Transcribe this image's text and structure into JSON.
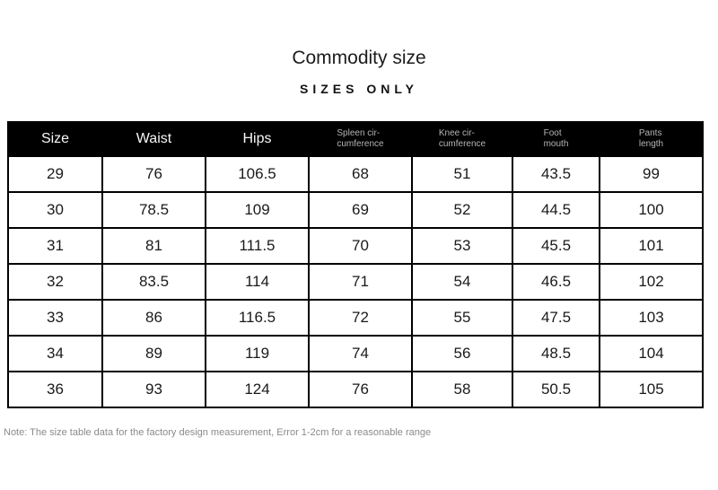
{
  "page": {
    "title": "Commodity size",
    "subtitle": "SIZES ONLY",
    "note": "Note: The size table data for the factory design measurement, Error 1-2cm for a reasonable range"
  },
  "colors": {
    "header_bg": "#000000",
    "header_text": "#f7f7f7",
    "header_subtext": "#b5b5b5",
    "body_text": "#1a1a1a",
    "border": "#000000",
    "note_text": "#8a8a8a",
    "background": "#ffffff"
  },
  "table": {
    "columns": [
      {
        "line1": "Size",
        "line2": ""
      },
      {
        "line1": "Waist",
        "line2": ""
      },
      {
        "line1": "Hips",
        "line2": ""
      },
      {
        "line1": "Spleen cir-",
        "line2": "cumference"
      },
      {
        "line1": "Knee cir-",
        "line2": "cumference"
      },
      {
        "line1": "Foot",
        "line2": "mouth"
      },
      {
        "line1": "Pants",
        "line2": "length"
      }
    ],
    "rows": [
      [
        "29",
        "76",
        "106.5",
        "68",
        "51",
        "43.5",
        "99"
      ],
      [
        "30",
        "78.5",
        "109",
        "69",
        "52",
        "44.5",
        "100"
      ],
      [
        "31",
        "81",
        "111.5",
        "70",
        "53",
        "45.5",
        "101"
      ],
      [
        "32",
        "83.5",
        "114",
        "71",
        "54",
        "46.5",
        "102"
      ],
      [
        "33",
        "86",
        "116.5",
        "72",
        "55",
        "47.5",
        "103"
      ],
      [
        "34",
        "89",
        "119",
        "74",
        "56",
        "48.5",
        "104"
      ],
      [
        "36",
        "93",
        "124",
        "76",
        "58",
        "50.5",
        "105"
      ]
    ]
  },
  "chart_data": {
    "type": "table",
    "title": "Commodity size",
    "subtitle": "SIZES ONLY",
    "columns": [
      "Size",
      "Waist",
      "Hips",
      "Spleen circumference",
      "Knee circumference",
      "Foot mouth",
      "Pants length"
    ],
    "rows": [
      [
        29,
        76,
        106.5,
        68,
        51,
        43.5,
        99
      ],
      [
        30,
        78.5,
        109,
        69,
        52,
        44.5,
        100
      ],
      [
        31,
        81,
        111.5,
        70,
        53,
        45.5,
        101
      ],
      [
        32,
        83.5,
        114,
        71,
        54,
        46.5,
        102
      ],
      [
        33,
        86,
        116.5,
        72,
        55,
        47.5,
        103
      ],
      [
        34,
        89,
        119,
        74,
        56,
        48.5,
        104
      ],
      [
        36,
        93,
        124,
        76,
        58,
        50.5,
        105
      ]
    ],
    "note": "Note: The size table data for the factory design measurement, Error 1-2cm for a reasonable range"
  }
}
